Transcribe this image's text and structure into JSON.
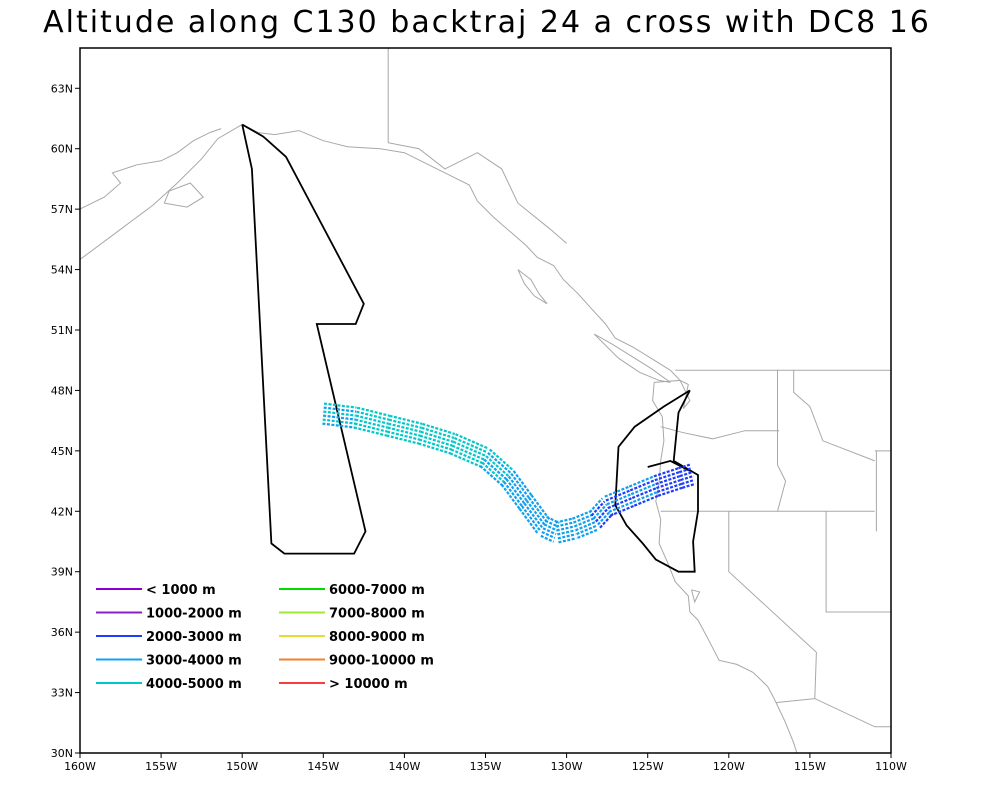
{
  "title": "Altitude along C130 backtraj 24 a cross with DC8 16",
  "map": {
    "lon_range": [
      -160,
      -110
    ],
    "lat_range": [
      30,
      65
    ],
    "lon_ticks": [
      {
        "v": -160,
        "label": "160W"
      },
      {
        "v": -155,
        "label": "155W"
      },
      {
        "v": -150,
        "label": "150W"
      },
      {
        "v": -145,
        "label": "145W"
      },
      {
        "v": -140,
        "label": "140W"
      },
      {
        "v": -135,
        "label": "135W"
      },
      {
        "v": -130,
        "label": "130W"
      },
      {
        "v": -125,
        "label": "125W"
      },
      {
        "v": -120,
        "label": "120W"
      },
      {
        "v": -115,
        "label": "115W"
      },
      {
        "v": -110,
        "label": "110W"
      }
    ],
    "lat_ticks": [
      {
        "v": 30,
        "label": "30N"
      },
      {
        "v": 33,
        "label": "33N"
      },
      {
        "v": 36,
        "label": "36N"
      },
      {
        "v": 39,
        "label": "39N"
      },
      {
        "v": 42,
        "label": "42N"
      },
      {
        "v": 45,
        "label": "45N"
      },
      {
        "v": 48,
        "label": "48N"
      },
      {
        "v": 51,
        "label": "51N"
      },
      {
        "v": 54,
        "label": "54N"
      },
      {
        "v": 57,
        "label": "57N"
      },
      {
        "v": 60,
        "label": "60N"
      },
      {
        "v": 63,
        "label": "63N"
      }
    ]
  },
  "legend": {
    "items": [
      {
        "label": "< 1000 m",
        "color": "#8a00d4"
      },
      {
        "label": "1000-2000 m",
        "color": "#8c1ec8"
      },
      {
        "label": "2000-3000 m",
        "color": "#1e3cff"
      },
      {
        "label": "3000-4000 m",
        "color": "#0fa0f0"
      },
      {
        "label": "4000-5000 m",
        "color": "#00c8c8"
      },
      {
        "label": "6000-7000 m",
        "color": "#00dc00"
      },
      {
        "label": "7000-8000 m",
        "color": "#a0e632"
      },
      {
        "label": "8000-9000 m",
        "color": "#e6dc32"
      },
      {
        "label": "9000-10000 m",
        "color": "#f08228"
      },
      {
        "label": "> 10000 m",
        "color": "#fa3c3c"
      }
    ]
  },
  "dc8_flight_track": [
    [
      -150.0,
      61.2
    ],
    [
      -148.7,
      60.6
    ],
    [
      -147.3,
      59.6
    ],
    [
      -142.5,
      52.3
    ],
    [
      -143.0,
      51.3
    ],
    [
      -145.4,
      51.3
    ],
    [
      -142.4,
      41.0
    ],
    [
      -143.1,
      39.9
    ],
    [
      -147.4,
      39.9
    ],
    [
      -148.2,
      40.4
    ],
    [
      -149.4,
      59.0
    ],
    [
      -150.0,
      61.2
    ]
  ],
  "dc8_flight_track_east": [
    [
      -122.4,
      48.0
    ],
    [
      -123.1,
      46.9
    ],
    [
      -123.4,
      44.5
    ],
    [
      -121.9,
      43.8
    ],
    [
      -121.9,
      42.0
    ],
    [
      -122.2,
      40.5
    ],
    [
      -122.1,
      39.0
    ],
    [
      -123.1,
      39.0
    ],
    [
      -124.5,
      39.6
    ],
    [
      -125.3,
      40.4
    ],
    [
      -126.3,
      41.3
    ],
    [
      -127.0,
      42.3
    ],
    [
      -126.8,
      45.2
    ],
    [
      -125.8,
      46.2
    ],
    [
      -124.0,
      47.2
    ],
    [
      -122.4,
      48.0
    ]
  ],
  "dc8_flight_track_spur": [
    [
      -125.0,
      44.2
    ],
    [
      -123.6,
      44.5
    ],
    [
      -122.4,
      44.0
    ]
  ],
  "backtrajectory": [
    {
      "lon": -145.0,
      "lat": 46.9,
      "alt_m": 3500
    },
    {
      "lon": -143.0,
      "lat": 46.7,
      "alt_m": 4100
    },
    {
      "lon": -141.0,
      "lat": 46.3,
      "alt_m": 4300
    },
    {
      "lon": -139.0,
      "lat": 45.9,
      "alt_m": 4400
    },
    {
      "lon": -137.0,
      "lat": 45.4,
      "alt_m": 4300
    },
    {
      "lon": -135.0,
      "lat": 44.7,
      "alt_m": 4100
    },
    {
      "lon": -133.6,
      "lat": 43.7,
      "alt_m": 3800
    },
    {
      "lon": -132.5,
      "lat": 42.5,
      "alt_m": 3500
    },
    {
      "lon": -131.4,
      "lat": 41.3,
      "alt_m": 3300
    },
    {
      "lon": -130.6,
      "lat": 41.0,
      "alt_m": 3200
    },
    {
      "lon": -129.5,
      "lat": 41.2,
      "alt_m": 3200
    },
    {
      "lon": -128.3,
      "lat": 41.6,
      "alt_m": 3100
    },
    {
      "lon": -127.5,
      "lat": 42.3,
      "alt_m": 3000
    },
    {
      "lon": -126.0,
      "lat": 42.8,
      "alt_m": 2900
    },
    {
      "lon": -124.5,
      "lat": 43.3,
      "alt_m": 2800
    },
    {
      "lon": -123.0,
      "lat": 43.7,
      "alt_m": 2600
    },
    {
      "lon": -122.2,
      "lat": 43.9,
      "alt_m": 2200
    }
  ],
  "coastline": [
    [
      [
        -160.0,
        54.5
      ],
      [
        -157.5,
        56.0
      ],
      [
        -155.5,
        57.2
      ],
      [
        -154.0,
        58.3
      ],
      [
        -152.5,
        59.5
      ],
      [
        -151.5,
        60.5
      ],
      [
        -150.0,
        61.2
      ],
      [
        -149.0,
        60.8
      ],
      [
        -148.0,
        60.7
      ],
      [
        -146.5,
        60.9
      ],
      [
        -145.0,
        60.4
      ],
      [
        -143.5,
        60.1
      ],
      [
        -141.5,
        60.0
      ],
      [
        -140.0,
        59.8
      ],
      [
        -138.5,
        59.2
      ],
      [
        -137.0,
        58.6
      ],
      [
        -136.0,
        58.2
      ],
      [
        -135.5,
        57.4
      ],
      [
        -134.5,
        56.6
      ],
      [
        -133.5,
        55.9
      ],
      [
        -132.5,
        55.2
      ],
      [
        -131.8,
        54.6
      ],
      [
        -130.8,
        54.2
      ],
      [
        -130.2,
        53.5
      ],
      [
        -129.3,
        52.8
      ],
      [
        -128.4,
        52.0
      ],
      [
        -127.6,
        51.3
      ],
      [
        -127.0,
        50.6
      ],
      [
        -125.8,
        50.1
      ],
      [
        -124.6,
        49.5
      ],
      [
        -123.6,
        49.0
      ],
      [
        -123.0,
        48.5
      ],
      [
        -124.6,
        48.4
      ],
      [
        -124.7,
        47.5
      ],
      [
        -124.1,
        46.7
      ],
      [
        -124.0,
        45.5
      ],
      [
        -124.2,
        44.5
      ],
      [
        -124.3,
        43.4
      ],
      [
        -124.5,
        42.5
      ],
      [
        -124.2,
        41.6
      ],
      [
        -124.3,
        40.4
      ],
      [
        -123.8,
        39.5
      ],
      [
        -123.3,
        38.5
      ],
      [
        -122.5,
        37.8
      ],
      [
        -122.4,
        37.0
      ],
      [
        -121.9,
        36.6
      ],
      [
        -121.3,
        35.7
      ],
      [
        -120.6,
        34.6
      ],
      [
        -119.5,
        34.4
      ],
      [
        -118.5,
        34.0
      ],
      [
        -117.6,
        33.3
      ],
      [
        -117.2,
        32.7
      ],
      [
        -116.5,
        31.5
      ],
      [
        -116.0,
        30.5
      ],
      [
        -115.8,
        30.0
      ]
    ],
    [
      [
        -160.0,
        57.0
      ],
      [
        -158.5,
        57.6
      ],
      [
        -157.5,
        58.3
      ],
      [
        -158.0,
        58.8
      ],
      [
        -156.5,
        59.2
      ],
      [
        -155.0,
        59.4
      ],
      [
        -154.0,
        59.8
      ],
      [
        -153.0,
        60.4
      ],
      [
        -152.0,
        60.8
      ],
      [
        -151.3,
        61.0
      ]
    ],
    [
      [
        -154.8,
        57.3
      ],
      [
        -153.4,
        57.1
      ],
      [
        -152.4,
        57.6
      ],
      [
        -153.2,
        58.3
      ],
      [
        -154.5,
        57.9
      ],
      [
        -154.8,
        57.3
      ]
    ],
    [
      [
        -133.0,
        54.0
      ],
      [
        -132.2,
        53.5
      ],
      [
        -131.7,
        52.8
      ],
      [
        -131.2,
        52.3
      ],
      [
        -132.0,
        52.7
      ],
      [
        -132.6,
        53.3
      ],
      [
        -133.0,
        54.0
      ]
    ],
    [
      [
        -128.3,
        50.8
      ],
      [
        -127.2,
        50.3
      ],
      [
        -126.0,
        49.7
      ],
      [
        -124.8,
        49.1
      ],
      [
        -123.6,
        48.4
      ],
      [
        -124.3,
        48.5
      ],
      [
        -125.5,
        48.9
      ],
      [
        -126.8,
        49.6
      ],
      [
        -128.3,
        50.8
      ]
    ],
    [
      [
        -123.0,
        48.5
      ],
      [
        -122.4,
        47.5
      ],
      [
        -122.8,
        47.1
      ],
      [
        -122.5,
        48.3
      ],
      [
        -123.0,
        48.5
      ]
    ],
    [
      [
        -122.3,
        38.1
      ],
      [
        -121.8,
        38.0
      ],
      [
        -122.1,
        37.5
      ],
      [
        -122.3,
        38.1
      ]
    ]
  ],
  "borders": [
    [
      [
        -141.0,
        65.0
      ],
      [
        -141.0,
        60.3
      ],
      [
        -139.1,
        60.0
      ],
      [
        -137.5,
        59.0
      ],
      [
        -135.5,
        59.8
      ],
      [
        -134.0,
        59.0
      ],
      [
        -133.0,
        57.3
      ],
      [
        -131.0,
        56.0
      ],
      [
        -130.0,
        55.3
      ]
    ],
    [
      [
        -123.3,
        49.0
      ],
      [
        -110.0,
        49.0
      ]
    ],
    [
      [
        -124.2,
        46.2
      ],
      [
        -122.8,
        45.9
      ],
      [
        -121.0,
        45.6
      ],
      [
        -119.0,
        46.0
      ],
      [
        -116.9,
        46.0
      ]
    ],
    [
      [
        -124.2,
        42.0
      ],
      [
        -117.0,
        42.0
      ],
      [
        -111.0,
        42.0
      ]
    ],
    [
      [
        -120.0,
        42.0
      ],
      [
        -120.0,
        39.0
      ],
      [
        -114.6,
        35.0
      ],
      [
        -114.7,
        32.7
      ]
    ],
    [
      [
        -117.0,
        49.0
      ],
      [
        -117.0,
        44.3
      ],
      [
        -116.5,
        43.5
      ],
      [
        -117.0,
        42.0
      ]
    ],
    [
      [
        -116.0,
        49.0
      ],
      [
        -116.0,
        47.9
      ],
      [
        -115.0,
        47.2
      ],
      [
        -114.2,
        45.5
      ],
      [
        -111.0,
        44.5
      ]
    ],
    [
      [
        -114.0,
        42.0
      ],
      [
        -114.0,
        37.0
      ],
      [
        -109.0,
        37.0
      ]
    ],
    [
      [
        -117.1,
        32.5
      ],
      [
        -114.7,
        32.7
      ],
      [
        -111.0,
        31.3
      ],
      [
        -110.0,
        31.3
      ]
    ],
    [
      [
        -111.0,
        45.0
      ],
      [
        -110.0,
        45.0
      ]
    ],
    [
      [
        -110.9,
        45.0
      ],
      [
        -110.9,
        41.0
      ]
    ]
  ]
}
